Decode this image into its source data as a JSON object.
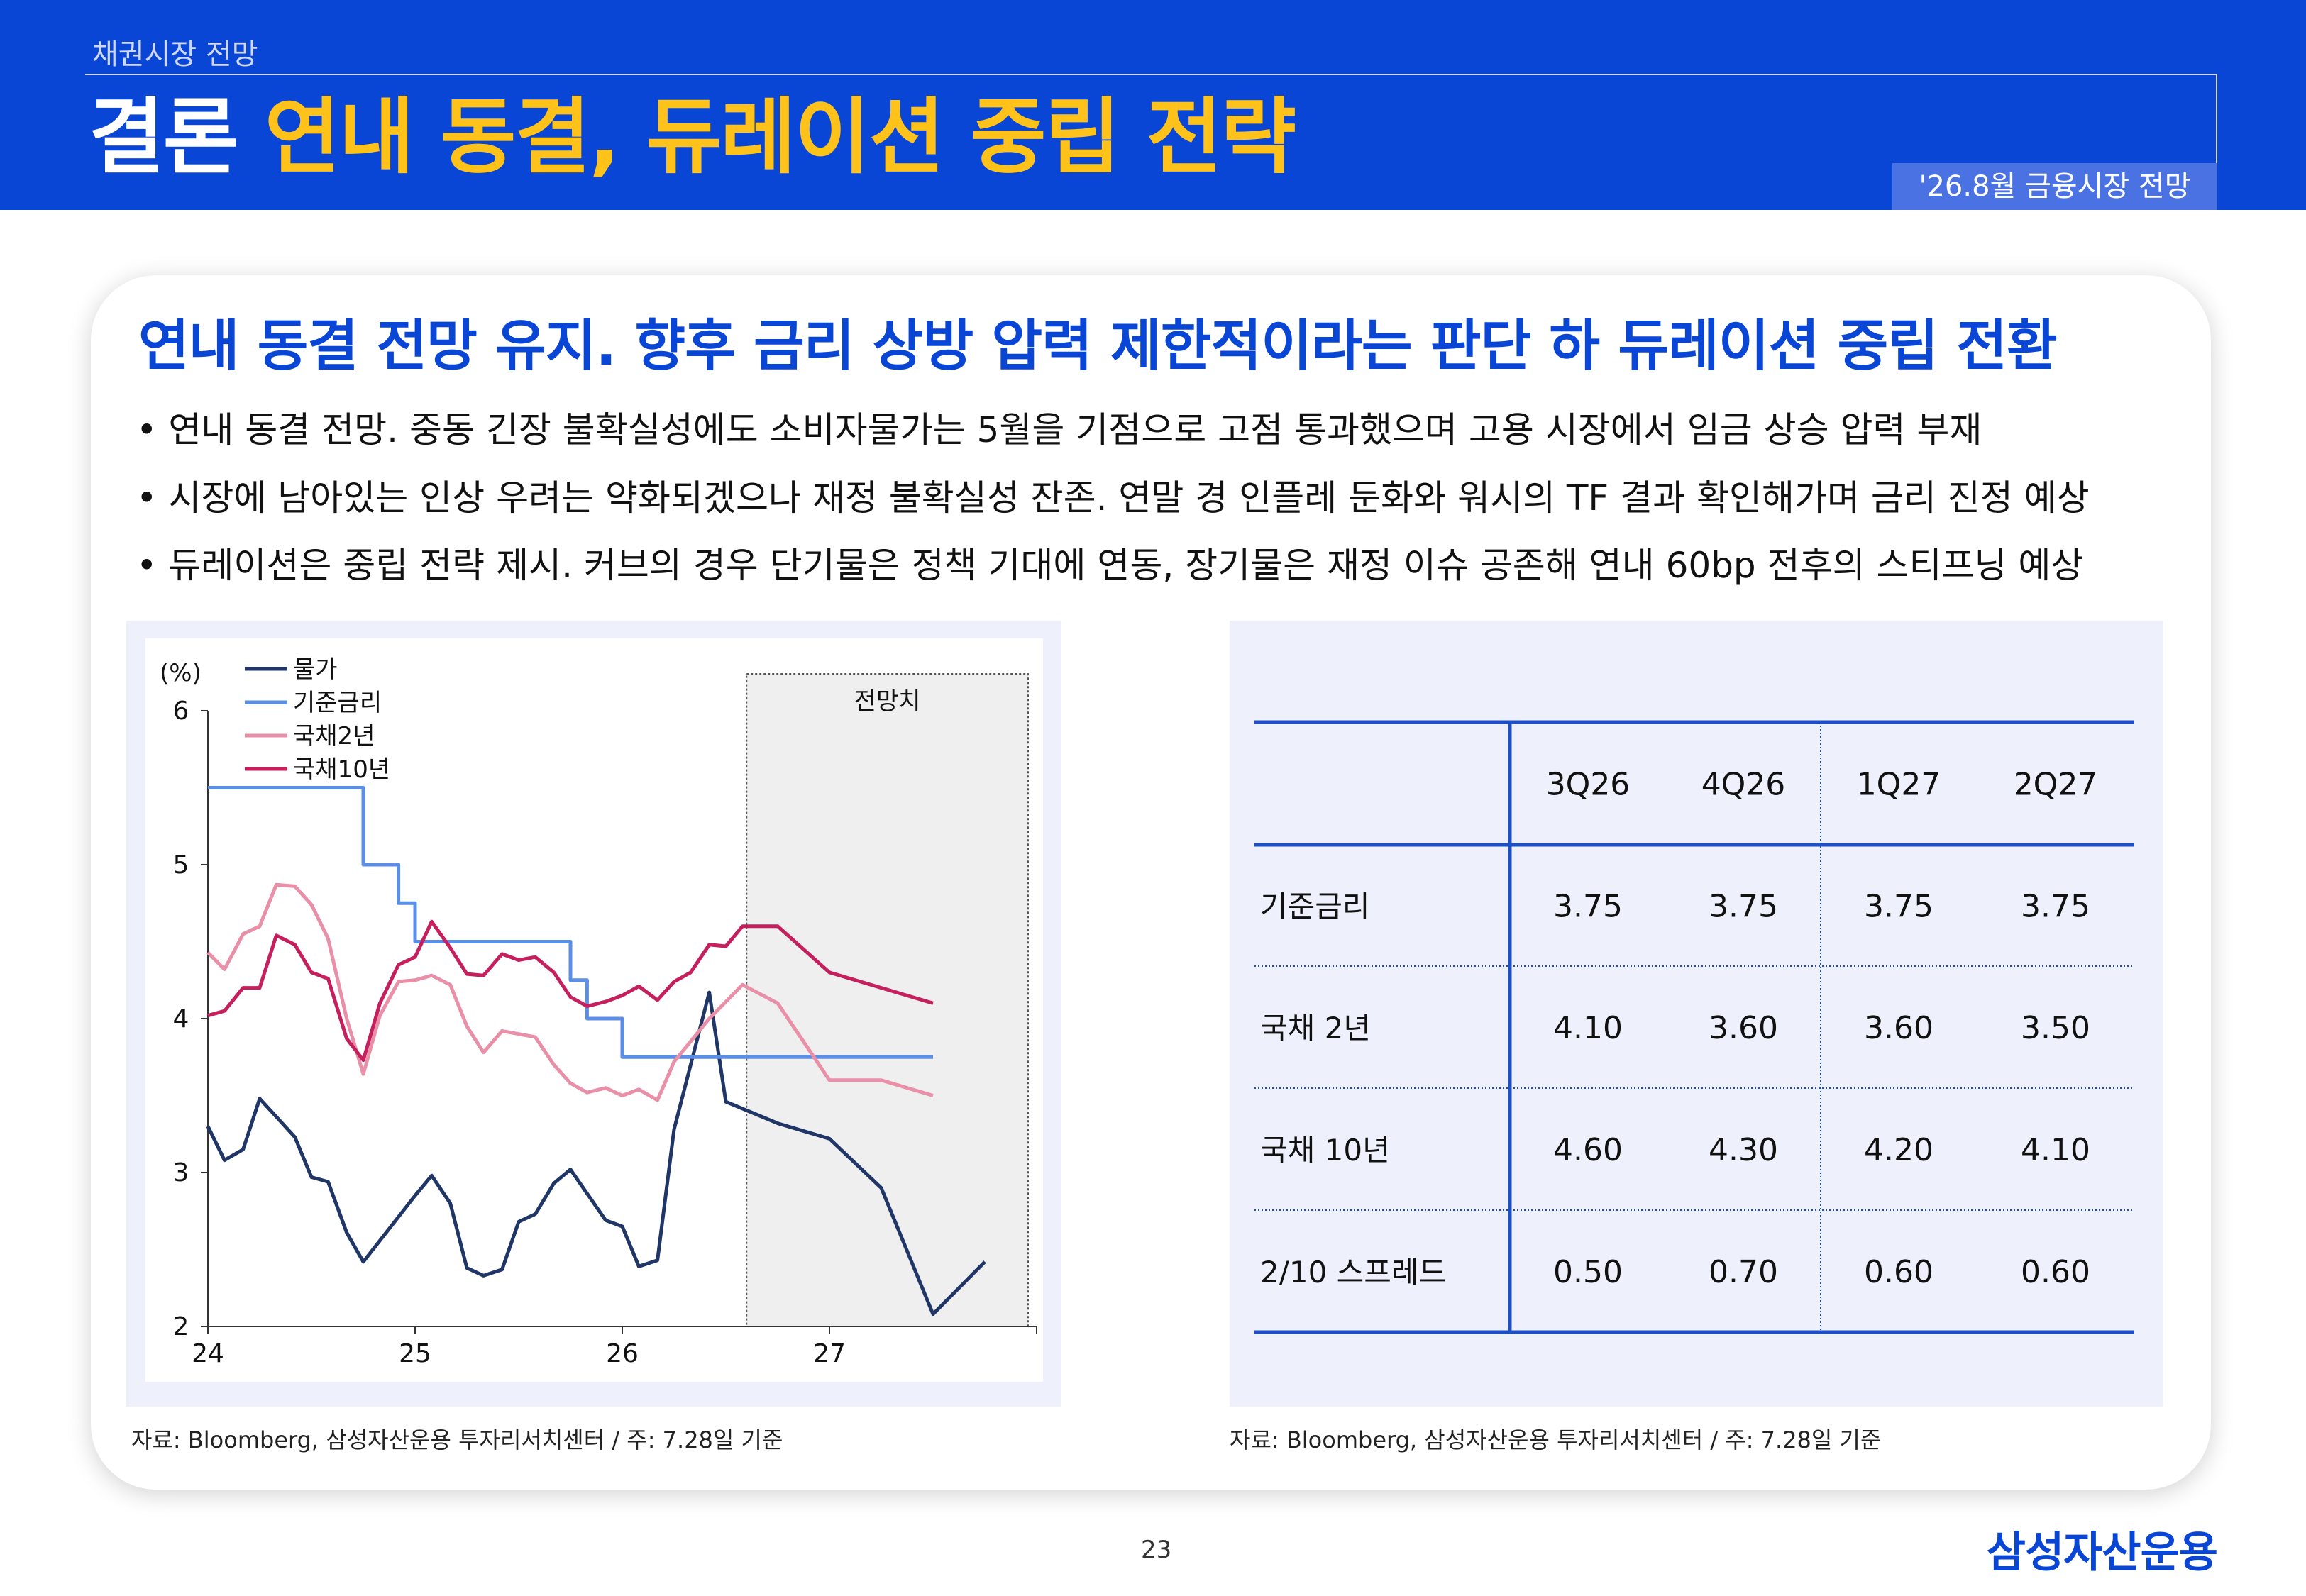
{
  "header": {
    "section_label": "채권시장 전망",
    "title_main": "결론",
    "title_accent": "연내 동결, 듀레이션 중립 전략",
    "date_label": "'26.8월 금융시장 전망"
  },
  "card": {
    "headline": "연내 동결 전망 유지. 향후 금리 상방 압력 제한적이라는 판단 하 듀레이션 중립 전환",
    "bullets": [
      "• 연내 동결 전망. 중동 긴장 불확실성에도 소비자물가는 5월을 기점으로 고점 통과했으며 고용 시장에서 임금 상승 압력 부재",
      "• 시장에 남아있는 인상 우려는 약화되겠으나 재정 불확실성 잔존. 연말 경 인플레 둔화와 워시의 TF 결과 확인해가며 금리 진정 예상",
      "• 듀레이션은 중립 전략 제시. 커브의 경우 단기물은 정책 기대에 연동, 장기물은 재정 이슈 공존해 연내 60bp 전후의 스티프닝 예상"
    ]
  },
  "chart_data": {
    "type": "line",
    "ylabel": "(%)",
    "ylim": [
      2,
      6
    ],
    "yticks": [
      "2",
      "3",
      "4",
      "5",
      "6"
    ],
    "xlim": [
      24,
      28
    ],
    "xticks": [
      "24",
      "25",
      "26",
      "27"
    ],
    "forecast_label": "전망치",
    "forecast_range": [
      26.6,
      28
    ],
    "series": [
      {
        "name": "물가",
        "color": "#1f3666",
        "points": [
          [
            24.0,
            3.3
          ],
          [
            24.08,
            3.08
          ],
          [
            24.17,
            3.15
          ],
          [
            24.25,
            3.48
          ],
          [
            24.42,
            3.23
          ],
          [
            24.5,
            2.97
          ],
          [
            24.58,
            2.94
          ],
          [
            24.67,
            2.61
          ],
          [
            24.75,
            2.42
          ],
          [
            25.0,
            2.85
          ],
          [
            25.08,
            2.98
          ],
          [
            25.17,
            2.8
          ],
          [
            25.25,
            2.38
          ],
          [
            25.33,
            2.33
          ],
          [
            25.42,
            2.37
          ],
          [
            25.5,
            2.68
          ],
          [
            25.58,
            2.73
          ],
          [
            25.67,
            2.93
          ],
          [
            25.75,
            3.02
          ],
          [
            25.92,
            2.69
          ],
          [
            26.0,
            2.65
          ],
          [
            26.08,
            2.39
          ],
          [
            26.17,
            2.43
          ],
          [
            26.25,
            3.28
          ],
          [
            26.42,
            4.17
          ],
          [
            26.5,
            3.46
          ],
          [
            26.75,
            3.32
          ],
          [
            27.0,
            3.22
          ],
          [
            27.25,
            2.9
          ],
          [
            27.5,
            2.08
          ],
          [
            27.75,
            2.42
          ]
        ]
      },
      {
        "name": "기준금리",
        "color": "#5b8ee6",
        "points": [
          [
            24.0,
            5.5
          ],
          [
            24.75,
            5.5
          ],
          [
            24.75,
            5.0
          ],
          [
            24.92,
            5.0
          ],
          [
            24.92,
            4.75
          ],
          [
            25.0,
            4.75
          ],
          [
            25.0,
            4.5
          ],
          [
            25.75,
            4.5
          ],
          [
            25.75,
            4.25
          ],
          [
            25.83,
            4.25
          ],
          [
            25.83,
            4.0
          ],
          [
            26.0,
            4.0
          ],
          [
            26.0,
            3.75
          ],
          [
            27.5,
            3.75
          ]
        ]
      },
      {
        "name": "국채2년",
        "color": "#e98fa8",
        "points": [
          [
            24.0,
            4.43
          ],
          [
            24.08,
            4.32
          ],
          [
            24.17,
            4.55
          ],
          [
            24.25,
            4.6
          ],
          [
            24.33,
            4.87
          ],
          [
            24.42,
            4.86
          ],
          [
            24.5,
            4.74
          ],
          [
            24.58,
            4.52
          ],
          [
            24.67,
            4.0
          ],
          [
            24.75,
            3.64
          ],
          [
            24.83,
            4.02
          ],
          [
            24.92,
            4.24
          ],
          [
            25.0,
            4.25
          ],
          [
            25.08,
            4.28
          ],
          [
            25.17,
            4.22
          ],
          [
            25.25,
            3.95
          ],
          [
            25.33,
            3.78
          ],
          [
            25.42,
            3.92
          ],
          [
            25.5,
            3.9
          ],
          [
            25.58,
            3.88
          ],
          [
            25.67,
            3.7
          ],
          [
            25.75,
            3.58
          ],
          [
            25.83,
            3.52
          ],
          [
            25.92,
            3.55
          ],
          [
            26.0,
            3.5
          ],
          [
            26.08,
            3.54
          ],
          [
            26.17,
            3.47
          ],
          [
            26.25,
            3.72
          ],
          [
            26.42,
            4.0
          ],
          [
            26.58,
            4.22
          ],
          [
            26.75,
            4.1
          ],
          [
            27.0,
            3.6
          ],
          [
            27.25,
            3.6
          ],
          [
            27.5,
            3.5
          ]
        ]
      },
      {
        "name": "국채10년",
        "color": "#c51f5d",
        "points": [
          [
            24.0,
            4.02
          ],
          [
            24.08,
            4.05
          ],
          [
            24.17,
            4.2
          ],
          [
            24.25,
            4.2
          ],
          [
            24.33,
            4.54
          ],
          [
            24.42,
            4.48
          ],
          [
            24.5,
            4.3
          ],
          [
            24.58,
            4.26
          ],
          [
            24.67,
            3.87
          ],
          [
            24.75,
            3.73
          ],
          [
            24.83,
            4.1
          ],
          [
            24.92,
            4.35
          ],
          [
            25.0,
            4.4
          ],
          [
            25.08,
            4.63
          ],
          [
            25.17,
            4.46
          ],
          [
            25.25,
            4.29
          ],
          [
            25.33,
            4.28
          ],
          [
            25.42,
            4.42
          ],
          [
            25.5,
            4.38
          ],
          [
            25.58,
            4.4
          ],
          [
            25.67,
            4.3
          ],
          [
            25.75,
            4.14
          ],
          [
            25.83,
            4.08
          ],
          [
            25.92,
            4.11
          ],
          [
            26.0,
            4.15
          ],
          [
            26.08,
            4.21
          ],
          [
            26.17,
            4.12
          ],
          [
            26.25,
            4.24
          ],
          [
            26.33,
            4.3
          ],
          [
            26.42,
            4.48
          ],
          [
            26.5,
            4.47
          ],
          [
            26.58,
            4.6
          ],
          [
            26.75,
            4.6
          ],
          [
            27.0,
            4.3
          ],
          [
            27.25,
            4.2
          ],
          [
            27.5,
            4.1
          ]
        ]
      }
    ]
  },
  "table": {
    "headers": [
      "",
      "3Q26",
      "4Q26",
      "1Q27",
      "2Q27"
    ],
    "rows": [
      {
        "label": "기준금리",
        "values": [
          "3.75",
          "3.75",
          "3.75",
          "3.75"
        ]
      },
      {
        "label": "국채 2년",
        "values": [
          "4.10",
          "3.60",
          "3.60",
          "3.50"
        ]
      },
      {
        "label": "국채 10년",
        "values": [
          "4.60",
          "4.30",
          "4.20",
          "4.10"
        ]
      },
      {
        "label": "2/10 스프레드",
        "values": [
          "0.50",
          "0.70",
          "0.60",
          "0.60"
        ]
      }
    ]
  },
  "sources": {
    "left": "자료: Bloomberg, 삼성자산운용 투자리서치센터 / 주: 7.28일 기준",
    "right": "자료: Bloomberg, 삼성자산운용 투자리서치센터 / 주: 7.28일 기준"
  },
  "footer": {
    "page_number": "23",
    "logo": "삼성자산운용"
  }
}
